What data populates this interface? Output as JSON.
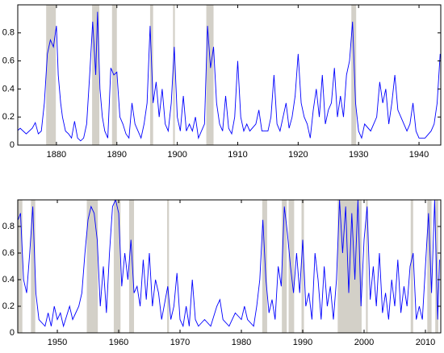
{
  "chart_data": [
    {
      "type": "line",
      "x": [
        1873.5,
        1874,
        1875,
        1876,
        1876.5,
        1877,
        1877.5,
        1878,
        1878.5,
        1879,
        1879.5,
        1880,
        1880.3,
        1880.7,
        1881,
        1881.5,
        1882,
        1882.5,
        1883,
        1883.5,
        1884,
        1884.5,
        1885,
        1885.5,
        1886,
        1886.5,
        1886.8,
        1887.2,
        1887.6,
        1888,
        1888.5,
        1889,
        1889.5,
        1890,
        1890.5,
        1891,
        1891.5,
        1892,
        1892.5,
        1893,
        1893.5,
        1894,
        1894.5,
        1895,
        1895.5,
        1896,
        1896.5,
        1897,
        1897.5,
        1898,
        1898.5,
        1899,
        1899.5,
        1900,
        1900.5,
        1901,
        1901.5,
        1902,
        1902.5,
        1903,
        1903.5,
        1904,
        1904.5,
        1905,
        1905.5,
        1906,
        1906.5,
        1907,
        1907.5,
        1908,
        1908.5,
        1909,
        1909.5,
        1910,
        1910.5,
        1911,
        1911.5,
        1912,
        1913,
        1913.5,
        1914,
        1915,
        1915.5,
        1916,
        1916.5,
        1917,
        1918,
        1918.5,
        1919,
        1919.5,
        1920,
        1920.5,
        1921,
        1921.5,
        1922,
        1922.5,
        1923,
        1923.5,
        1924,
        1924.5,
        1925,
        1925.5,
        1926,
        1926.5,
        1927,
        1927.5,
        1928,
        1928.5,
        1929,
        1929.5,
        1930,
        1930.5,
        1931,
        1932,
        1933,
        1933.5,
        1934,
        1934.5,
        1935,
        1935.5,
        1936,
        1936.5,
        1937,
        1938,
        1938.5,
        1939,
        1939.5,
        1940,
        1941,
        1942,
        1942.5,
        1943,
        1943.5
      ],
      "series": [
        {
          "color": "#0000ff",
          "values": [
            0.1,
            0.12,
            0.08,
            0.12,
            0.16,
            0.08,
            0.1,
            0.3,
            0.65,
            0.75,
            0.7,
            0.85,
            0.5,
            0.3,
            0.2,
            0.1,
            0.08,
            0.05,
            0.17,
            0.05,
            0.03,
            0.05,
            0.15,
            0.5,
            0.88,
            0.5,
            0.95,
            0.4,
            0.2,
            0.1,
            0.05,
            0.55,
            0.5,
            0.52,
            0.2,
            0.15,
            0.08,
            0.05,
            0.3,
            0.15,
            0.1,
            0.05,
            0.15,
            0.3,
            0.85,
            0.3,
            0.45,
            0.2,
            0.4,
            0.15,
            0.1,
            0.3,
            0.7,
            0.2,
            0.1,
            0.35,
            0.1,
            0.15,
            0.1,
            0.2,
            0.05,
            0.1,
            0.15,
            0.85,
            0.55,
            0.7,
            0.3,
            0.15,
            0.1,
            0.35,
            0.12,
            0.08,
            0.2,
            0.6,
            0.2,
            0.1,
            0.15,
            0.1,
            0.15,
            0.25,
            0.1,
            0.1,
            0.2,
            0.5,
            0.15,
            0.1,
            0.3,
            0.12,
            0.2,
            0.35,
            0.65,
            0.3,
            0.2,
            0.15,
            0.05,
            0.25,
            0.4,
            0.2,
            0.5,
            0.15,
            0.25,
            0.3,
            0.55,
            0.2,
            0.35,
            0.2,
            0.5,
            0.6,
            0.88,
            0.3,
            0.1,
            0.05,
            0.15,
            0.1,
            0.2,
            0.45,
            0.3,
            0.4,
            0.15,
            0.3,
            0.5,
            0.25,
            0.2,
            0.1,
            0.15,
            0.3,
            0.1,
            0.05,
            0.05,
            0.1,
            0.15,
            0.3,
            0.65
          ]
        }
      ],
      "shaded_regions": [
        [
          1878.3,
          1879.9
        ],
        [
          1885.9,
          1887.1
        ],
        [
          1889.2,
          1890
        ],
        [
          1895.5,
          1896
        ],
        [
          1899.3,
          1899.6
        ],
        [
          1904.8,
          1906
        ],
        [
          1928.8,
          1929.6
        ]
      ],
      "shade_color": "#d3d0c8",
      "xlim": [
        1873.6,
        1943.6
      ],
      "xticks": [
        1880,
        1890,
        1900,
        1910,
        1920,
        1930,
        1940
      ],
      "ylim": [
        0,
        1
      ],
      "yticks": [
        0,
        0.2,
        0.4,
        0.6,
        0.8
      ]
    },
    {
      "type": "line",
      "x": [
        1943.6,
        1944,
        1944.5,
        1945,
        1945.5,
        1946,
        1946.5,
        1947,
        1948,
        1948.5,
        1949,
        1949.5,
        1950,
        1950.5,
        1951,
        1952,
        1952.5,
        1953,
        1953.5,
        1954,
        1954.5,
        1955,
        1955.5,
        1956,
        1956.5,
        1957,
        1957.5,
        1958,
        1958.5,
        1959,
        1959.5,
        1960,
        1960.5,
        1961,
        1961.5,
        1962,
        1962.5,
        1963,
        1963.5,
        1964,
        1964.5,
        1965,
        1965.5,
        1966,
        1966.5,
        1967,
        1968,
        1968.5,
        1969,
        1969.5,
        1970,
        1970.5,
        1971,
        1971.5,
        1972,
        1972.5,
        1973,
        1974,
        1975,
        1976,
        1976.5,
        1977,
        1978,
        1979,
        1980,
        1980.5,
        1981,
        1982,
        1982.5,
        1983,
        1983.5,
        1984,
        1984.5,
        1985,
        1985.5,
        1986,
        1986.5,
        1987,
        1987.5,
        1988,
        1988.5,
        1989,
        1989.5,
        1990,
        1990.5,
        1991,
        1991.5,
        1992,
        1992.5,
        1993,
        1993.5,
        1994,
        1994.5,
        1995,
        1995.5,
        1996,
        1996.5,
        1997,
        1997.5,
        1998,
        1998.5,
        1999,
        1999.5,
        2000,
        2000.5,
        2001,
        2001.5,
        2002,
        2002.5,
        2003,
        2003.5,
        2004,
        2004.5,
        2005,
        2005.5,
        2006,
        2006.5,
        2007,
        2007.5,
        2008,
        2008.5,
        2009,
        2009.5,
        2010,
        2010.5,
        2011,
        2011.5,
        2012,
        2012.3
      ],
      "series": [
        {
          "color": "#0000ff",
          "values": [
            0.85,
            0.9,
            0.4,
            0.3,
            0.6,
            0.95,
            0.3,
            0.1,
            0.05,
            0.15,
            0.05,
            0.2,
            0.1,
            0.15,
            0.05,
            0.2,
            0.1,
            0.15,
            0.2,
            0.3,
            0.6,
            0.85,
            0.95,
            0.9,
            0.7,
            0.2,
            0.5,
            0.15,
            0.6,
            0.95,
            1.0,
            0.9,
            0.35,
            0.6,
            0.4,
            0.7,
            0.3,
            0.35,
            0.2,
            0.55,
            0.25,
            0.6,
            0.2,
            0.4,
            0.3,
            0.1,
            0.35,
            0.1,
            0.2,
            0.45,
            0.1,
            0.05,
            0.2,
            0.05,
            0.4,
            0.1,
            0.05,
            0.1,
            0.05,
            0.2,
            0.25,
            0.1,
            0.05,
            0.15,
            0.1,
            0.2,
            0.1,
            0.05,
            0.2,
            0.4,
            0.85,
            0.4,
            0.15,
            0.25,
            0.1,
            0.5,
            0.35,
            0.95,
            0.75,
            0.5,
            0.3,
            0.6,
            0.3,
            0.7,
            0.2,
            0.3,
            0.1,
            0.6,
            0.4,
            0.1,
            0.5,
            0.2,
            0.35,
            0.1,
            0.4,
            1.0,
            0.6,
            0.95,
            0.3,
            0.9,
            0.4,
            1.0,
            0.2,
            0.7,
            0.95,
            0.25,
            0.5,
            0.2,
            0.6,
            0.15,
            0.3,
            0.1,
            0.4,
            0.2,
            0.55,
            0.15,
            0.35,
            0.2,
            0.5,
            0.6,
            0.1,
            0.2,
            0.1,
            0.5,
            0.9,
            0.3,
            1.0,
            0.1,
            0.55
          ]
        }
      ],
      "shaded_regions": [
        [
          1943.6,
          1944.3
        ],
        [
          1945.7,
          1946.4
        ],
        [
          1954.8,
          1956.6
        ],
        [
          1959.2,
          1960.3
        ],
        [
          1961.7,
          1962.5
        ],
        [
          1967.9,
          1968.2
        ],
        [
          1983.4,
          1984.2
        ],
        [
          1986.6,
          1987.4
        ],
        [
          1987.7,
          1988.6
        ],
        [
          1989.8,
          1990.2
        ],
        [
          1995.7,
          1999.6
        ],
        [
          2000.3,
          2000.6
        ],
        [
          2007.6,
          2008
        ],
        [
          2010.3,
          2011
        ],
        [
          2011.6,
          2012.1
        ]
      ],
      "shade_color": "#d3d0c8",
      "xlim": [
        1943.55,
        2012.5
      ],
      "xticks": [
        1950,
        1960,
        1970,
        1980,
        1990,
        2000,
        2010
      ],
      "ylim": [
        0,
        1
      ],
      "yticks": [
        0,
        0.2,
        0.4,
        0.6,
        0.8
      ]
    }
  ]
}
